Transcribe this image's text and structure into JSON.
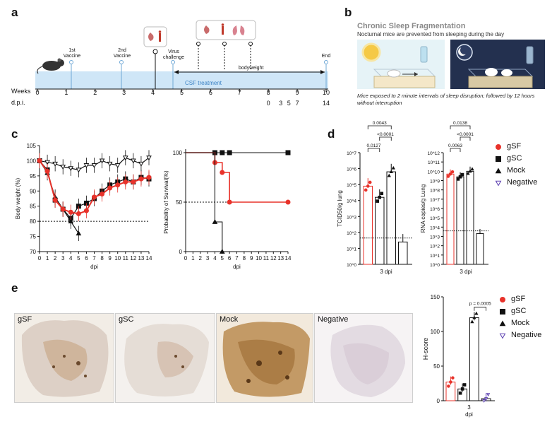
{
  "panels": {
    "a": "a",
    "b": "b",
    "c": "c",
    "d": "d",
    "e": "e"
  },
  "panel_a": {
    "weeks_label": "Weeks",
    "dpi_label": "d.p.i.",
    "weeks": [
      "0",
      "1",
      "2",
      "3",
      "4",
      "5",
      "6",
      "7",
      "8",
      "9",
      "10"
    ],
    "dpi_ticks": [
      "0",
      "3",
      "5",
      "7",
      "14"
    ],
    "events": {
      "vaccine1": "1st\nVaccine",
      "vaccine2": "2nd\nVaccine",
      "virus": "Virus\nchallenge",
      "end": "End"
    },
    "treatment": "CSF treatment",
    "bodyweight": "bodyweight"
  },
  "panel_b": {
    "title": "Chronic Sleep Fragmentation",
    "subtitle": "Nocturnal mice are prevented from sleeping during the day",
    "caption": "Mice exposed to 2 minute intervals of sleep disruption; followed by 12 hours without interruption"
  },
  "colors": {
    "gSF": "#e8322a",
    "gSC": "#111111",
    "Mock": "#111111",
    "Negative": "#5b3fb0",
    "timeline": "#c9e3f5"
  },
  "chart_data": [
    {
      "type": "line",
      "panel": "c-left",
      "ylabel": "Body weight (%)",
      "xlabel": "dpi",
      "ylim": [
        70,
        105
      ],
      "x": [
        0,
        1,
        2,
        3,
        4,
        5,
        6,
        7,
        8,
        9,
        10,
        11,
        12,
        13,
        14
      ],
      "yticks": [
        "70",
        "75",
        "80",
        "85",
        "90",
        "95",
        "100",
        "105"
      ],
      "reference": 80,
      "series": [
        {
          "name": "Negative",
          "x": [
            0,
            1,
            2,
            3,
            4,
            5,
            6,
            7,
            8,
            9,
            10,
            11,
            12,
            13,
            14
          ],
          "values": [
            100,
            99.5,
            99,
            98,
            97.5,
            97,
            98.5,
            98.5,
            100,
            99,
            98.5,
            101,
            100,
            99,
            101
          ]
        },
        {
          "name": "Mock",
          "x": [
            0,
            1,
            2,
            3,
            4,
            5
          ],
          "values": [
            100,
            96,
            88,
            84,
            80,
            76
          ]
        },
        {
          "name": "gSC",
          "x": [
            0,
            1,
            2,
            3,
            4,
            5,
            6,
            7,
            8,
            9,
            10,
            11,
            12,
            13,
            14
          ],
          "values": [
            100,
            97,
            87,
            84,
            81,
            85,
            86,
            87.5,
            90,
            92,
            93,
            94,
            93,
            94.5,
            94
          ]
        },
        {
          "name": "gSF",
          "x": [
            0,
            1,
            2,
            3,
            4,
            5,
            6,
            7,
            8,
            9,
            10,
            11,
            12,
            13,
            14
          ],
          "values": [
            100,
            96.5,
            87,
            84,
            83,
            82.5,
            83.5,
            88,
            89,
            91,
            92,
            93,
            93,
            94,
            94.5
          ]
        }
      ]
    },
    {
      "type": "line",
      "panel": "c-right",
      "ylabel": "Probability of Survival(%)",
      "xlabel": "dpi",
      "ylim": [
        0,
        100
      ],
      "x": [
        0,
        1,
        2,
        3,
        4,
        5,
        6,
        7,
        8,
        9,
        10,
        11,
        12,
        13,
        14
      ],
      "yticks": [
        "0",
        "50",
        "100"
      ],
      "reference": 50,
      "series": [
        {
          "name": "gSC",
          "x": [
            0,
            4,
            5,
            6,
            14
          ],
          "values": [
            100,
            100,
            100,
            100,
            100
          ]
        },
        {
          "name": "gSF",
          "x": [
            0,
            4,
            5,
            6,
            14
          ],
          "values": [
            100,
            90,
            80,
            50,
            50
          ]
        },
        {
          "name": "Mock",
          "x": [
            0,
            4,
            5
          ],
          "values": [
            100,
            30,
            0
          ]
        }
      ]
    },
    {
      "type": "bar",
      "panel": "d-left",
      "ylabel": "TCID50/g lung",
      "xlabel": "3 dpi",
      "scale": "log",
      "ylim": [
        0,
        7
      ],
      "yticks": [
        "10^0",
        "10^1",
        "10^2",
        "10^3",
        "10^4",
        "10^5",
        "10^6",
        "10^7"
      ],
      "categories": [
        "gSF",
        "gSC",
        "Mock",
        "Negative"
      ],
      "values": [
        4.9,
        4.2,
        5.8,
        1.4
      ],
      "detection_limit": 1.65,
      "comparisons": [
        {
          "pair": [
            "gSF",
            "gSC"
          ],
          "p": "0.0127"
        },
        {
          "pair": [
            "gSC",
            "Mock"
          ],
          "p": "<0.0001"
        },
        {
          "pair": [
            "gSF",
            "Mock"
          ],
          "p": "0.0043"
        }
      ]
    },
    {
      "type": "bar",
      "panel": "d-right",
      "ylabel": "RNA copies/g Lung",
      "xlabel": "3 dpi",
      "scale": "log",
      "ylim": [
        0,
        12
      ],
      "yticks": [
        "10^0",
        "10^1",
        "10^2",
        "10^3",
        "10^4",
        "10^5",
        "10^6",
        "10^7",
        "10^8",
        "10^9",
        "10^10",
        "10^11",
        "10^12"
      ],
      "categories": [
        "gSF",
        "gSC",
        "Mock",
        "Negative"
      ],
      "values": [
        9.7,
        9.4,
        10,
        3.3
      ],
      "detection_limit": 3.6,
      "comparisons": [
        {
          "pair": [
            "gSF",
            "gSC"
          ],
          "p": "0.0063"
        },
        {
          "pair": [
            "gSC",
            "Mock"
          ],
          "p": "<0.0001"
        },
        {
          "pair": [
            "gSF",
            "Mock"
          ],
          "p": "0.0138"
        }
      ]
    },
    {
      "type": "bar",
      "panel": "e",
      "ylabel": "H-score",
      "xlabel": "3\ndpi",
      "ylim": [
        0,
        150
      ],
      "yticks": [
        "0",
        "50",
        "100",
        "150"
      ],
      "categories": [
        "gSF",
        "gSC",
        "Mock",
        "Negative"
      ],
      "values": [
        27,
        17,
        120,
        3
      ],
      "comparisons": [
        {
          "pair": [
            "Mock",
            "Negative"
          ],
          "p": "p = 0.0005"
        }
      ]
    }
  ],
  "legend": {
    "items": [
      {
        "label": "gSF",
        "symbol": "circle",
        "color": "#e8322a"
      },
      {
        "label": "gSC",
        "symbol": "square",
        "color": "#111111"
      },
      {
        "label": "Mock",
        "symbol": "triangle",
        "color": "#111111"
      },
      {
        "label": "Negative",
        "symbol": "triangle-down",
        "color": "#5b3fb0"
      }
    ]
  },
  "lungs": [
    {
      "label": "gSF"
    },
    {
      "label": "gSC"
    },
    {
      "label": "Mock"
    },
    {
      "label": "Negative"
    }
  ]
}
